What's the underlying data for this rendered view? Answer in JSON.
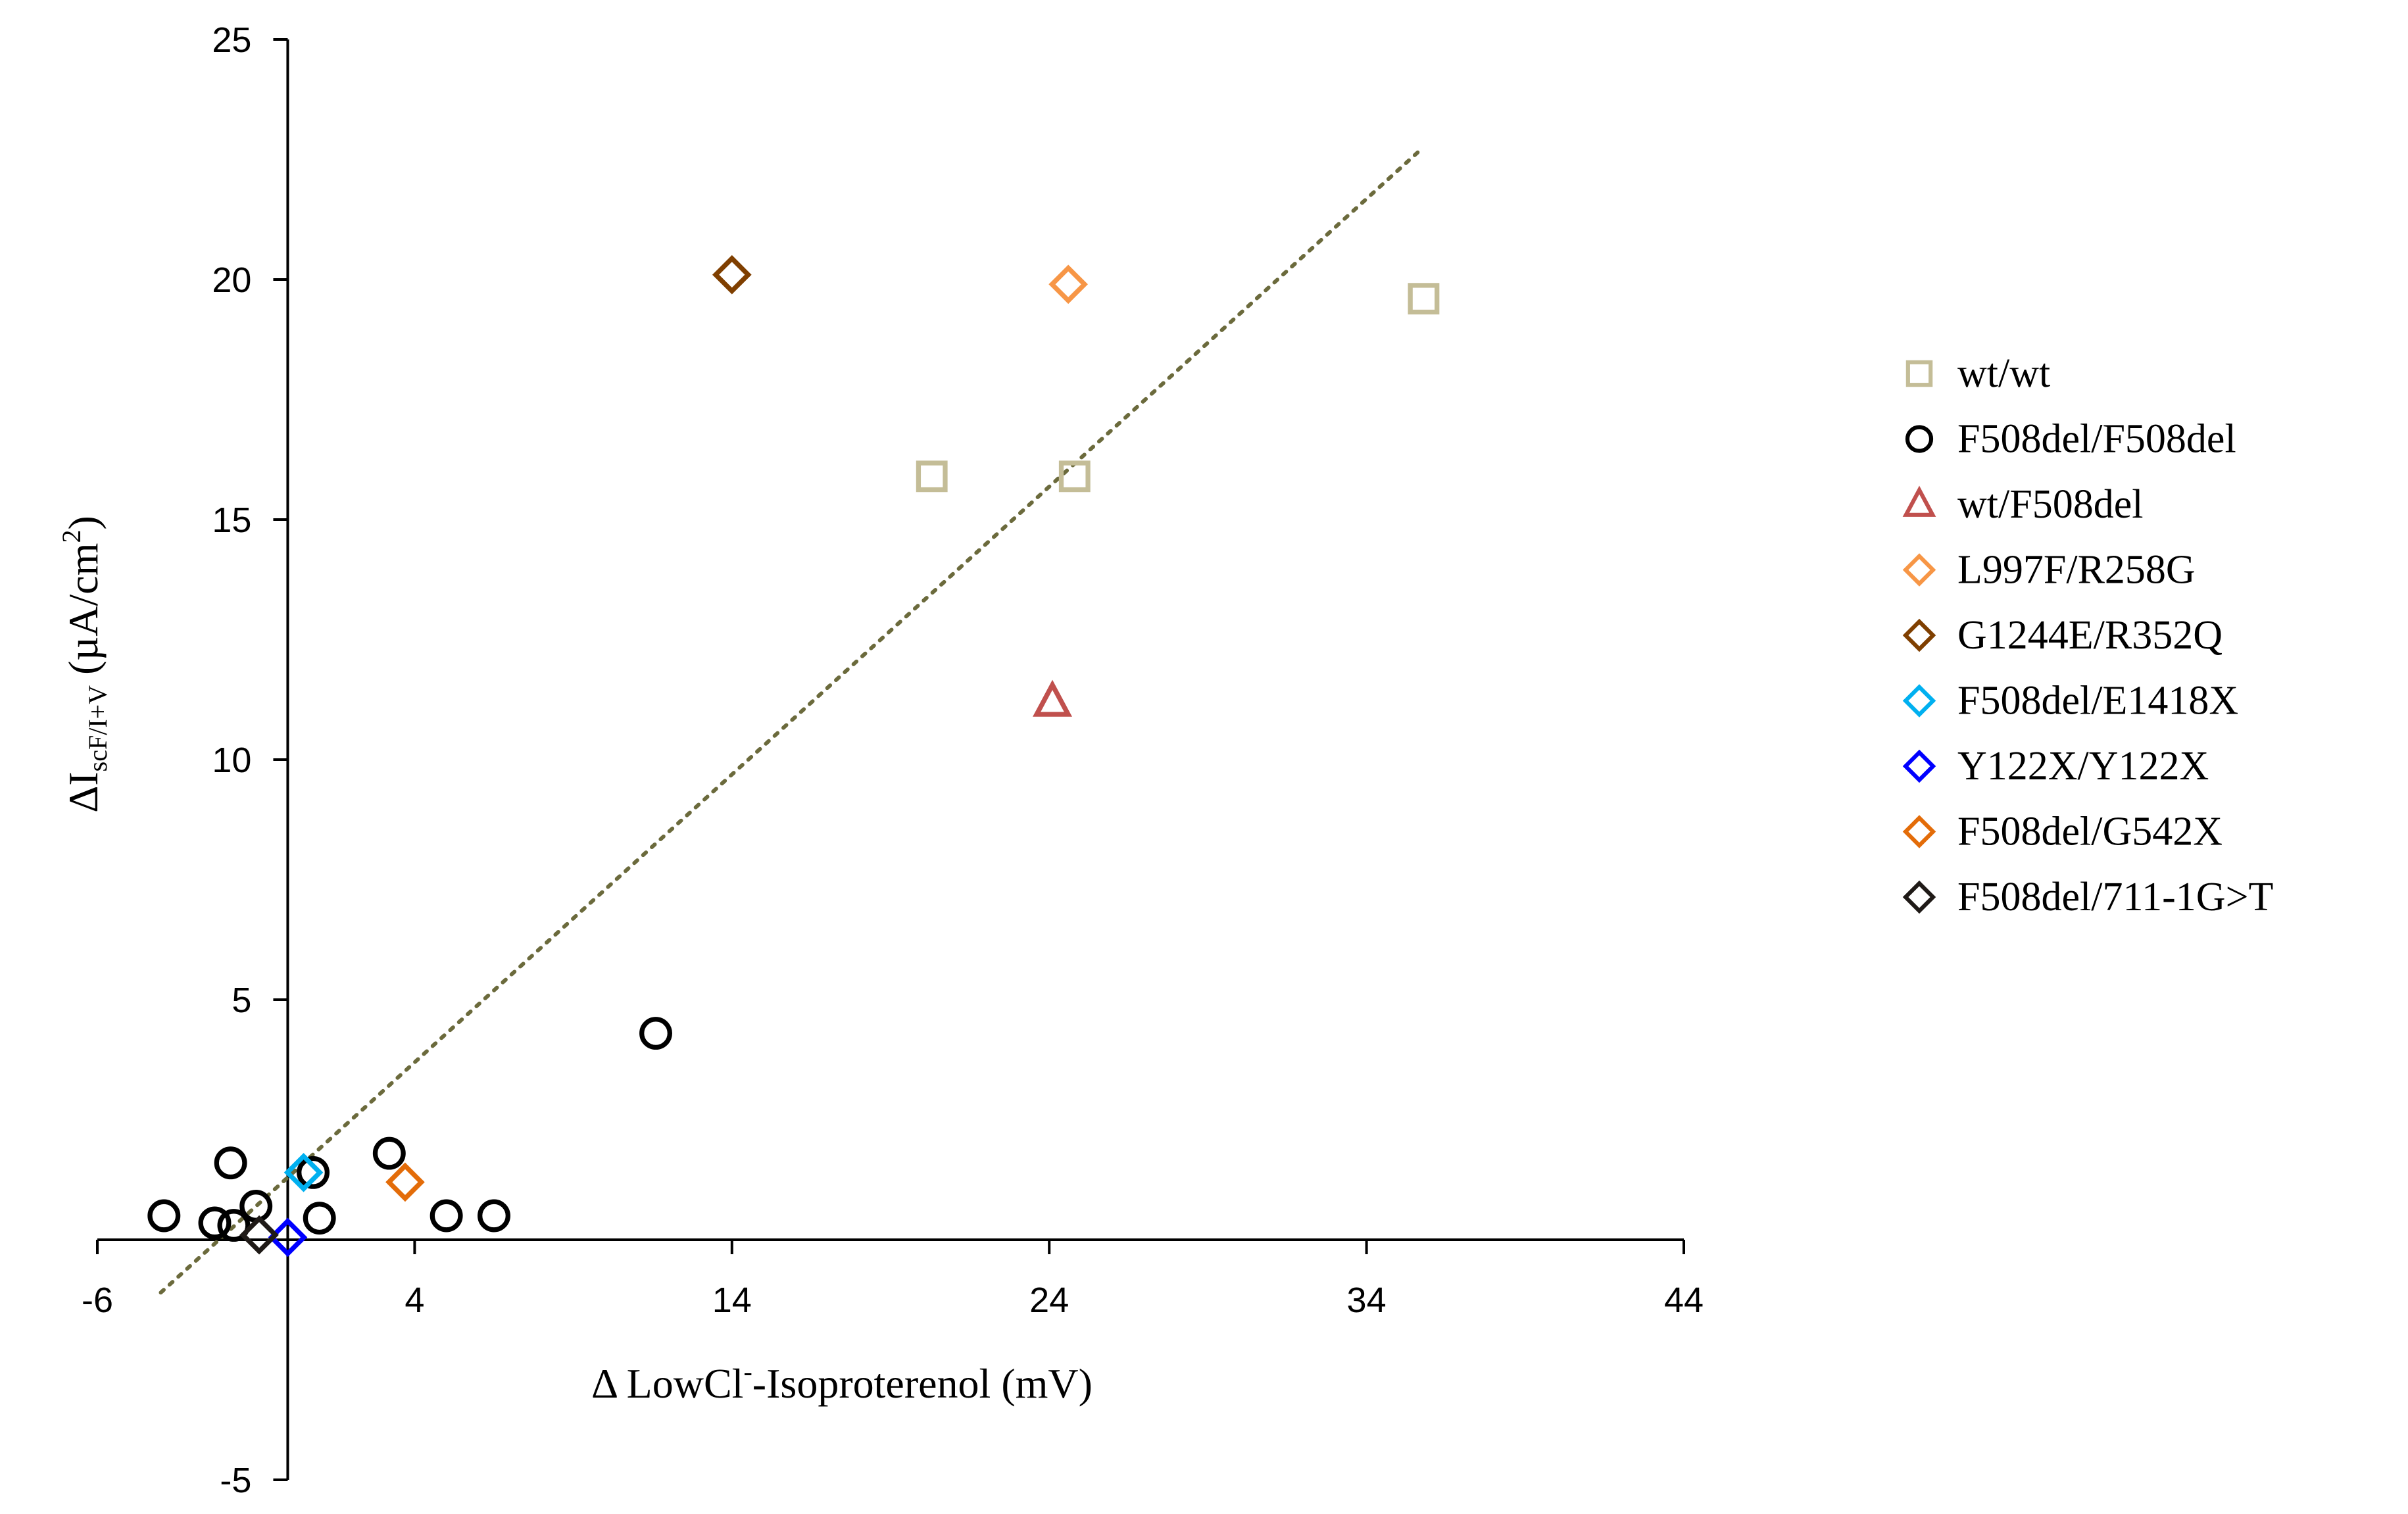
{
  "chart_data": {
    "type": "scatter",
    "title": "",
    "xlabel": {
      "delta": "Δ",
      "main": "LowCl",
      "sup": "-",
      "rest": "-Isoproterenol (mV)"
    },
    "ylabel": {
      "delta": "ΔI",
      "sub": "scF/I+V",
      "main": " (µA/cm",
      "sup": "2",
      "close": ")"
    },
    "xlim": [
      -6,
      44
    ],
    "ylim": [
      -5,
      25
    ],
    "x_ticks": [
      -6,
      4,
      14,
      24,
      34,
      44
    ],
    "y_ticks": [
      -5,
      5,
      10,
      15,
      20,
      25
    ],
    "grid": false,
    "legend_position": "right",
    "trendline": {
      "style": "dotted",
      "color": "#6b6a3c",
      "x": [
        -4,
        35.7
      ],
      "y": [
        -1.1,
        22.7
      ]
    },
    "series": [
      {
        "name": "wt/wt",
        "marker": "square",
        "color": "#c4bd97",
        "points": [
          [
            20.3,
            15.9
          ],
          [
            24.8,
            15.9
          ],
          [
            35.8,
            19.6
          ]
        ]
      },
      {
        "name": "F508del/F508del",
        "marker": "circle",
        "color": "#000000",
        "points": [
          [
            -3.9,
            0.5
          ],
          [
            -2.3,
            0.35
          ],
          [
            -1.8,
            1.6
          ],
          [
            -1.7,
            0.3
          ],
          [
            -1.0,
            0.7
          ],
          [
            0.8,
            1.4
          ],
          [
            1.0,
            0.45
          ],
          [
            3.2,
            1.8
          ],
          [
            5.0,
            0.5
          ],
          [
            6.5,
            0.5
          ],
          [
            11.6,
            4.3
          ]
        ]
      },
      {
        "name": "wt/F508del",
        "marker": "triangle",
        "color": "#c0504d",
        "points": [
          [
            24.1,
            11.2
          ]
        ]
      },
      {
        "name": "L997F/R258G",
        "marker": "diamond",
        "color": "#f79646",
        "points": [
          [
            24.6,
            19.9
          ]
        ]
      },
      {
        "name": "G1244E/R352Q",
        "marker": "diamond",
        "color": "#7f3f00",
        "points": [
          [
            14.0,
            20.1
          ]
        ]
      },
      {
        "name": "F508del/E1418X",
        "marker": "diamond",
        "color": "#00b0f0",
        "points": [
          [
            0.5,
            1.4
          ]
        ]
      },
      {
        "name": "Y122X/Y122X",
        "marker": "diamond",
        "color": "#0000ff",
        "points": [
          [
            0.0,
            0.05
          ]
        ]
      },
      {
        "name": "F508del/G542X",
        "marker": "diamond",
        "color": "#e36c09",
        "points": [
          [
            3.7,
            1.2
          ]
        ]
      },
      {
        "name": "F508del/711-1G>T",
        "marker": "diamond",
        "color": "#1f1a17",
        "points": [
          [
            -0.9,
            0.1
          ]
        ]
      }
    ]
  }
}
